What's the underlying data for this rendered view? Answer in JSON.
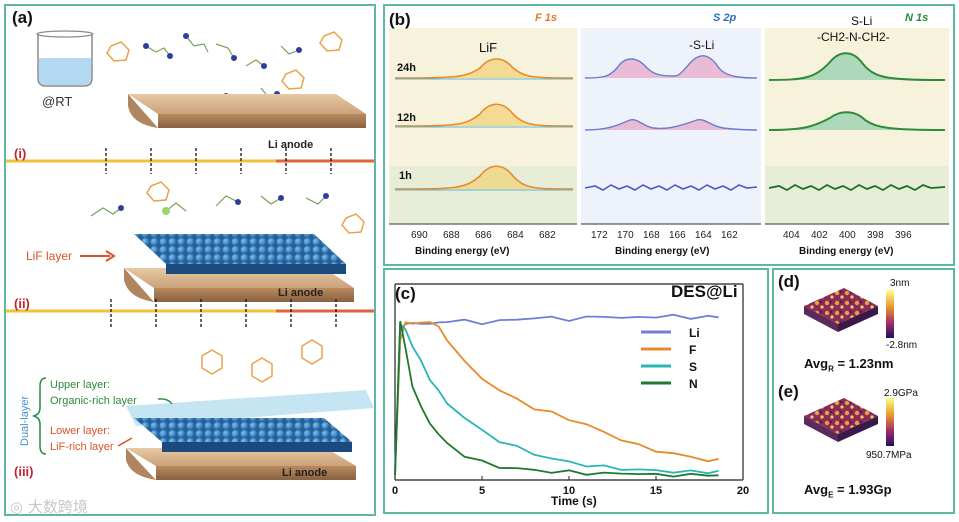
{
  "panel_a": {
    "label": "(a)",
    "beaker_caption": "@RT",
    "anode_label": "Li anode",
    "lif_layer_label": "LiF layer",
    "upper_layer_label": "Upper layer:",
    "organic_layer_label": "Organic-rich layer",
    "lower_layer_label": "Lower layer:",
    "lif_rich_label": "LiF-rich layer",
    "dual_layer_label": "Dual-layer",
    "steps": [
      "(i)",
      "(ii)",
      "(iii)"
    ]
  },
  "panel_b": {
    "label": "(b)",
    "spectra": [
      {
        "element": "F 1s",
        "peak_label": "LiF",
        "xlabel": "Binding energy (eV)",
        "ticks": [
          "690",
          "688",
          "686",
          "684",
          "682"
        ]
      },
      {
        "element": "S 2p",
        "peak_label": "-S-Li",
        "xlabel": "Binding energy (eV)",
        "ticks": [
          "172",
          "170",
          "168",
          "166",
          "164",
          "162"
        ]
      },
      {
        "element": "N 1s",
        "peak_label_top": "S-Li",
        "peak_label": "-CH2-N-CH2-",
        "xlabel": "Binding energy (eV)",
        "ticks": [
          "404",
          "402",
          "400",
          "398",
          "396"
        ]
      }
    ],
    "times": [
      "24h",
      "12h",
      "1h"
    ]
  },
  "chart_data": {
    "type": "line",
    "title": "DES@Li",
    "panel_label": "(c)",
    "xlabel": "Time (s)",
    "ylabel": "",
    "xlim": [
      0,
      20
    ],
    "ylim": [
      0,
      1.05
    ],
    "xticks": [
      "0",
      "5",
      "10",
      "15",
      "20"
    ],
    "legend_position": "center-right",
    "x": [
      0,
      0.3,
      0.6,
      1,
      1.5,
      2,
      2.5,
      3,
      4,
      5,
      6,
      7,
      8,
      9,
      10,
      11,
      12,
      13,
      14,
      15,
      16,
      17,
      18,
      18.6
    ],
    "series": [
      {
        "name": "Li",
        "color": "#6f7fd6",
        "values": [
          0.03,
          0.92,
          0.96,
          0.95,
          0.96,
          0.95,
          0.96,
          0.97,
          0.97,
          0.96,
          0.97,
          0.98,
          0.99,
          0.99,
          0.98,
          0.99,
          1.0,
          0.99,
          0.99,
          1.0,
          1.0,
          0.99,
          1.0,
          0.99
        ]
      },
      {
        "name": "F",
        "color": "#e88a2a",
        "values": [
          0.03,
          0.85,
          0.97,
          0.95,
          0.96,
          0.97,
          0.93,
          0.86,
          0.72,
          0.62,
          0.55,
          0.49,
          0.44,
          0.41,
          0.37,
          0.34,
          0.29,
          0.25,
          0.21,
          0.18,
          0.16,
          0.14,
          0.12,
          0.12
        ]
      },
      {
        "name": "S",
        "color": "#2bb6b6",
        "values": [
          0.03,
          0.95,
          0.92,
          0.82,
          0.72,
          0.62,
          0.54,
          0.47,
          0.38,
          0.3,
          0.24,
          0.2,
          0.16,
          0.13,
          0.11,
          0.09,
          0.08,
          0.07,
          0.06,
          0.06,
          0.05,
          0.05,
          0.05,
          0.05
        ]
      },
      {
        "name": "N",
        "color": "#1e7a2e",
        "values": [
          0.03,
          0.97,
          0.8,
          0.58,
          0.44,
          0.35,
          0.28,
          0.22,
          0.15,
          0.11,
          0.08,
          0.07,
          0.06,
          0.05,
          0.05,
          0.04,
          0.04,
          0.04,
          0.04,
          0.03,
          0.03,
          0.03,
          0.03,
          0.03
        ]
      }
    ]
  },
  "panel_d": {
    "label": "(d)",
    "scale_top": "3nm",
    "scale_bottom": "-2.8nm",
    "avg_prefix": "Avg",
    "avg_sub": "R",
    "avg_value": " = 1.23nm"
  },
  "panel_e": {
    "label": "(e)",
    "scale_top": "2.9GPa",
    "scale_bottom": "950.7MPa",
    "avg_prefix": "Avg",
    "avg_sub": "E",
    "avg_value": " = 1.93Gp"
  },
  "watermark": "大数跨境",
  "colors": {
    "frame": "#5fb8a3",
    "f_label": "#e07b2a",
    "s_label": "#2a6fb8",
    "n_label": "#2b8a3a"
  }
}
